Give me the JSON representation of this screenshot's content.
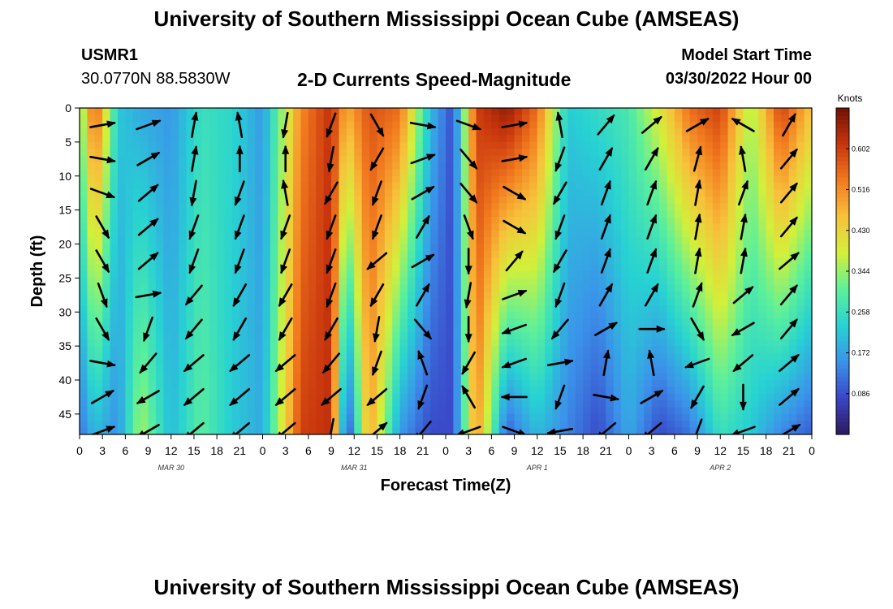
{
  "header": {
    "title": "University of Southern Mississippi Ocean Cube (AMSEAS)",
    "station_id": "USMR1",
    "station_coords": "30.0770N  88.5830W",
    "plot_title": "2-D Currents Speed-Magnitude",
    "model_start_label": "Model Start Time",
    "model_start_value": "03/30/2022 Hour 00"
  },
  "footer": {
    "title": "University of Southern Mississippi Ocean Cube (AMSEAS)"
  },
  "chart_data": {
    "type": "heatmap",
    "xlabel": "Forecast Time(Z)",
    "ylabel": "Depth (ft)",
    "x_tick_labels": [
      "0",
      "3",
      "6",
      "9",
      "12",
      "15",
      "18",
      "21",
      "0",
      "3",
      "6",
      "9",
      "12",
      "15",
      "18",
      "21",
      "0",
      "3",
      "6",
      "9",
      "12",
      "15",
      "18",
      "21",
      "0",
      "3",
      "6",
      "9",
      "12",
      "15",
      "18",
      "21",
      "0"
    ],
    "day_labels": [
      {
        "label": "MAR 30",
        "hour": 12
      },
      {
        "label": "MAR 31",
        "hour": 36
      },
      {
        "label": "APR 1",
        "hour": 60
      },
      {
        "label": "APR 2",
        "hour": 84
      }
    ],
    "xlim": [
      0,
      96
    ],
    "y_ticks": [
      0,
      5,
      10,
      15,
      20,
      25,
      30,
      35,
      40,
      45
    ],
    "ylim": [
      0,
      48
    ],
    "colorbar": {
      "unit": "Knots",
      "ticks": [
        "0.602",
        "0.516",
        "0.430",
        "0.344",
        "0.258",
        "0.172",
        "0.086"
      ],
      "tick_values": [
        0.602,
        0.516,
        0.43,
        0.344,
        0.258,
        0.172,
        0.086
      ],
      "range": [
        0.0,
        0.688
      ],
      "colors": [
        "#2c1a5c",
        "#3a46c8",
        "#3b93ea",
        "#27d2d2",
        "#5df09a",
        "#d2f03a",
        "#f7c23b",
        "#f27a1f",
        "#c8350d",
        "#6f1204"
      ]
    },
    "speed_columns": [
      {
        "hour": 0,
        "surface": 0.3,
        "bottom": 0.12
      },
      {
        "hour": 2,
        "surface": 0.58,
        "bottom": 0.2
      },
      {
        "hour": 5,
        "surface": 0.22,
        "bottom": 0.15
      },
      {
        "hour": 8,
        "surface": 0.18,
        "bottom": 0.36
      },
      {
        "hour": 12,
        "surface": 0.16,
        "bottom": 0.2
      },
      {
        "hour": 16,
        "surface": 0.26,
        "bottom": 0.3
      },
      {
        "hour": 20,
        "surface": 0.24,
        "bottom": 0.22
      },
      {
        "hour": 24,
        "surface": 0.16,
        "bottom": 0.18
      },
      {
        "hour": 29,
        "surface": 0.52,
        "bottom": 0.6
      },
      {
        "hour": 33,
        "surface": 0.62,
        "bottom": 0.62
      },
      {
        "hour": 35,
        "surface": 0.48,
        "bottom": 0.05
      },
      {
        "hour": 38,
        "surface": 0.58,
        "bottom": 0.5
      },
      {
        "hour": 42,
        "surface": 0.55,
        "bottom": 0.16
      },
      {
        "hour": 46,
        "surface": 0.2,
        "bottom": 0.08
      },
      {
        "hour": 49,
        "surface": 0.08,
        "bottom": 0.08
      },
      {
        "hour": 52,
        "surface": 0.6,
        "bottom": 0.52
      },
      {
        "hour": 56,
        "surface": 0.66,
        "bottom": 0.1
      },
      {
        "hour": 60,
        "surface": 0.55,
        "bottom": 0.2
      },
      {
        "hour": 64,
        "surface": 0.22,
        "bottom": 0.14
      },
      {
        "hour": 68,
        "surface": 0.25,
        "bottom": 0.08
      },
      {
        "hour": 72,
        "surface": 0.28,
        "bottom": 0.18
      },
      {
        "hour": 76,
        "surface": 0.4,
        "bottom": 0.08
      },
      {
        "hour": 80,
        "surface": 0.55,
        "bottom": 0.12
      },
      {
        "hour": 84,
        "surface": 0.6,
        "bottom": 0.26
      },
      {
        "hour": 88,
        "surface": 0.35,
        "bottom": 0.22
      },
      {
        "hour": 92,
        "surface": 0.6,
        "bottom": 0.14
      },
      {
        "hour": 96,
        "surface": 0.45,
        "bottom": 0.1
      }
    ],
    "vector_rows_depth": [
      0,
      5,
      10,
      15,
      20,
      25,
      30,
      35,
      40,
      45
    ],
    "vector_cols_hour": [
      3,
      9,
      15,
      21,
      27,
      33,
      39,
      45,
      51,
      57,
      63,
      69,
      75,
      81,
      87,
      93
    ],
    "vector_directions_deg": [
      [
        80,
        70,
        10,
        350,
        190,
        200,
        150,
        100,
        110,
        80,
        350,
        40,
        50,
        60,
        300,
        30
      ],
      [
        100,
        60,
        10,
        0,
        0,
        190,
        210,
        70,
        140,
        80,
        200,
        30,
        30,
        15,
        350,
        40
      ],
      [
        110,
        50,
        190,
        200,
        350,
        210,
        200,
        60,
        140,
        120,
        210,
        20,
        20,
        10,
        20,
        40
      ],
      [
        150,
        50,
        200,
        200,
        200,
        200,
        200,
        30,
        160,
        120,
        200,
        20,
        20,
        10,
        10,
        40
      ],
      [
        150,
        50,
        200,
        200,
        200,
        200,
        230,
        60,
        180,
        40,
        210,
        20,
        20,
        10,
        10,
        50
      ],
      [
        160,
        80,
        220,
        210,
        210,
        200,
        210,
        30,
        190,
        70,
        200,
        30,
        30,
        20,
        50,
        40
      ],
      [
        150,
        200,
        220,
        210,
        210,
        210,
        190,
        140,
        180,
        250,
        220,
        60,
        90,
        150,
        240,
        40
      ],
      [
        100,
        220,
        230,
        230,
        230,
        220,
        200,
        340,
        210,
        250,
        80,
        10,
        350,
        250,
        230,
        50
      ],
      [
        60,
        240,
        230,
        230,
        230,
        230,
        230,
        200,
        330,
        270,
        200,
        100,
        60,
        210,
        180,
        50
      ],
      [
        70,
        240,
        230,
        230,
        230,
        190,
        50,
        220,
        250,
        110,
        260,
        230,
        230,
        200,
        250,
        60
      ]
    ]
  }
}
